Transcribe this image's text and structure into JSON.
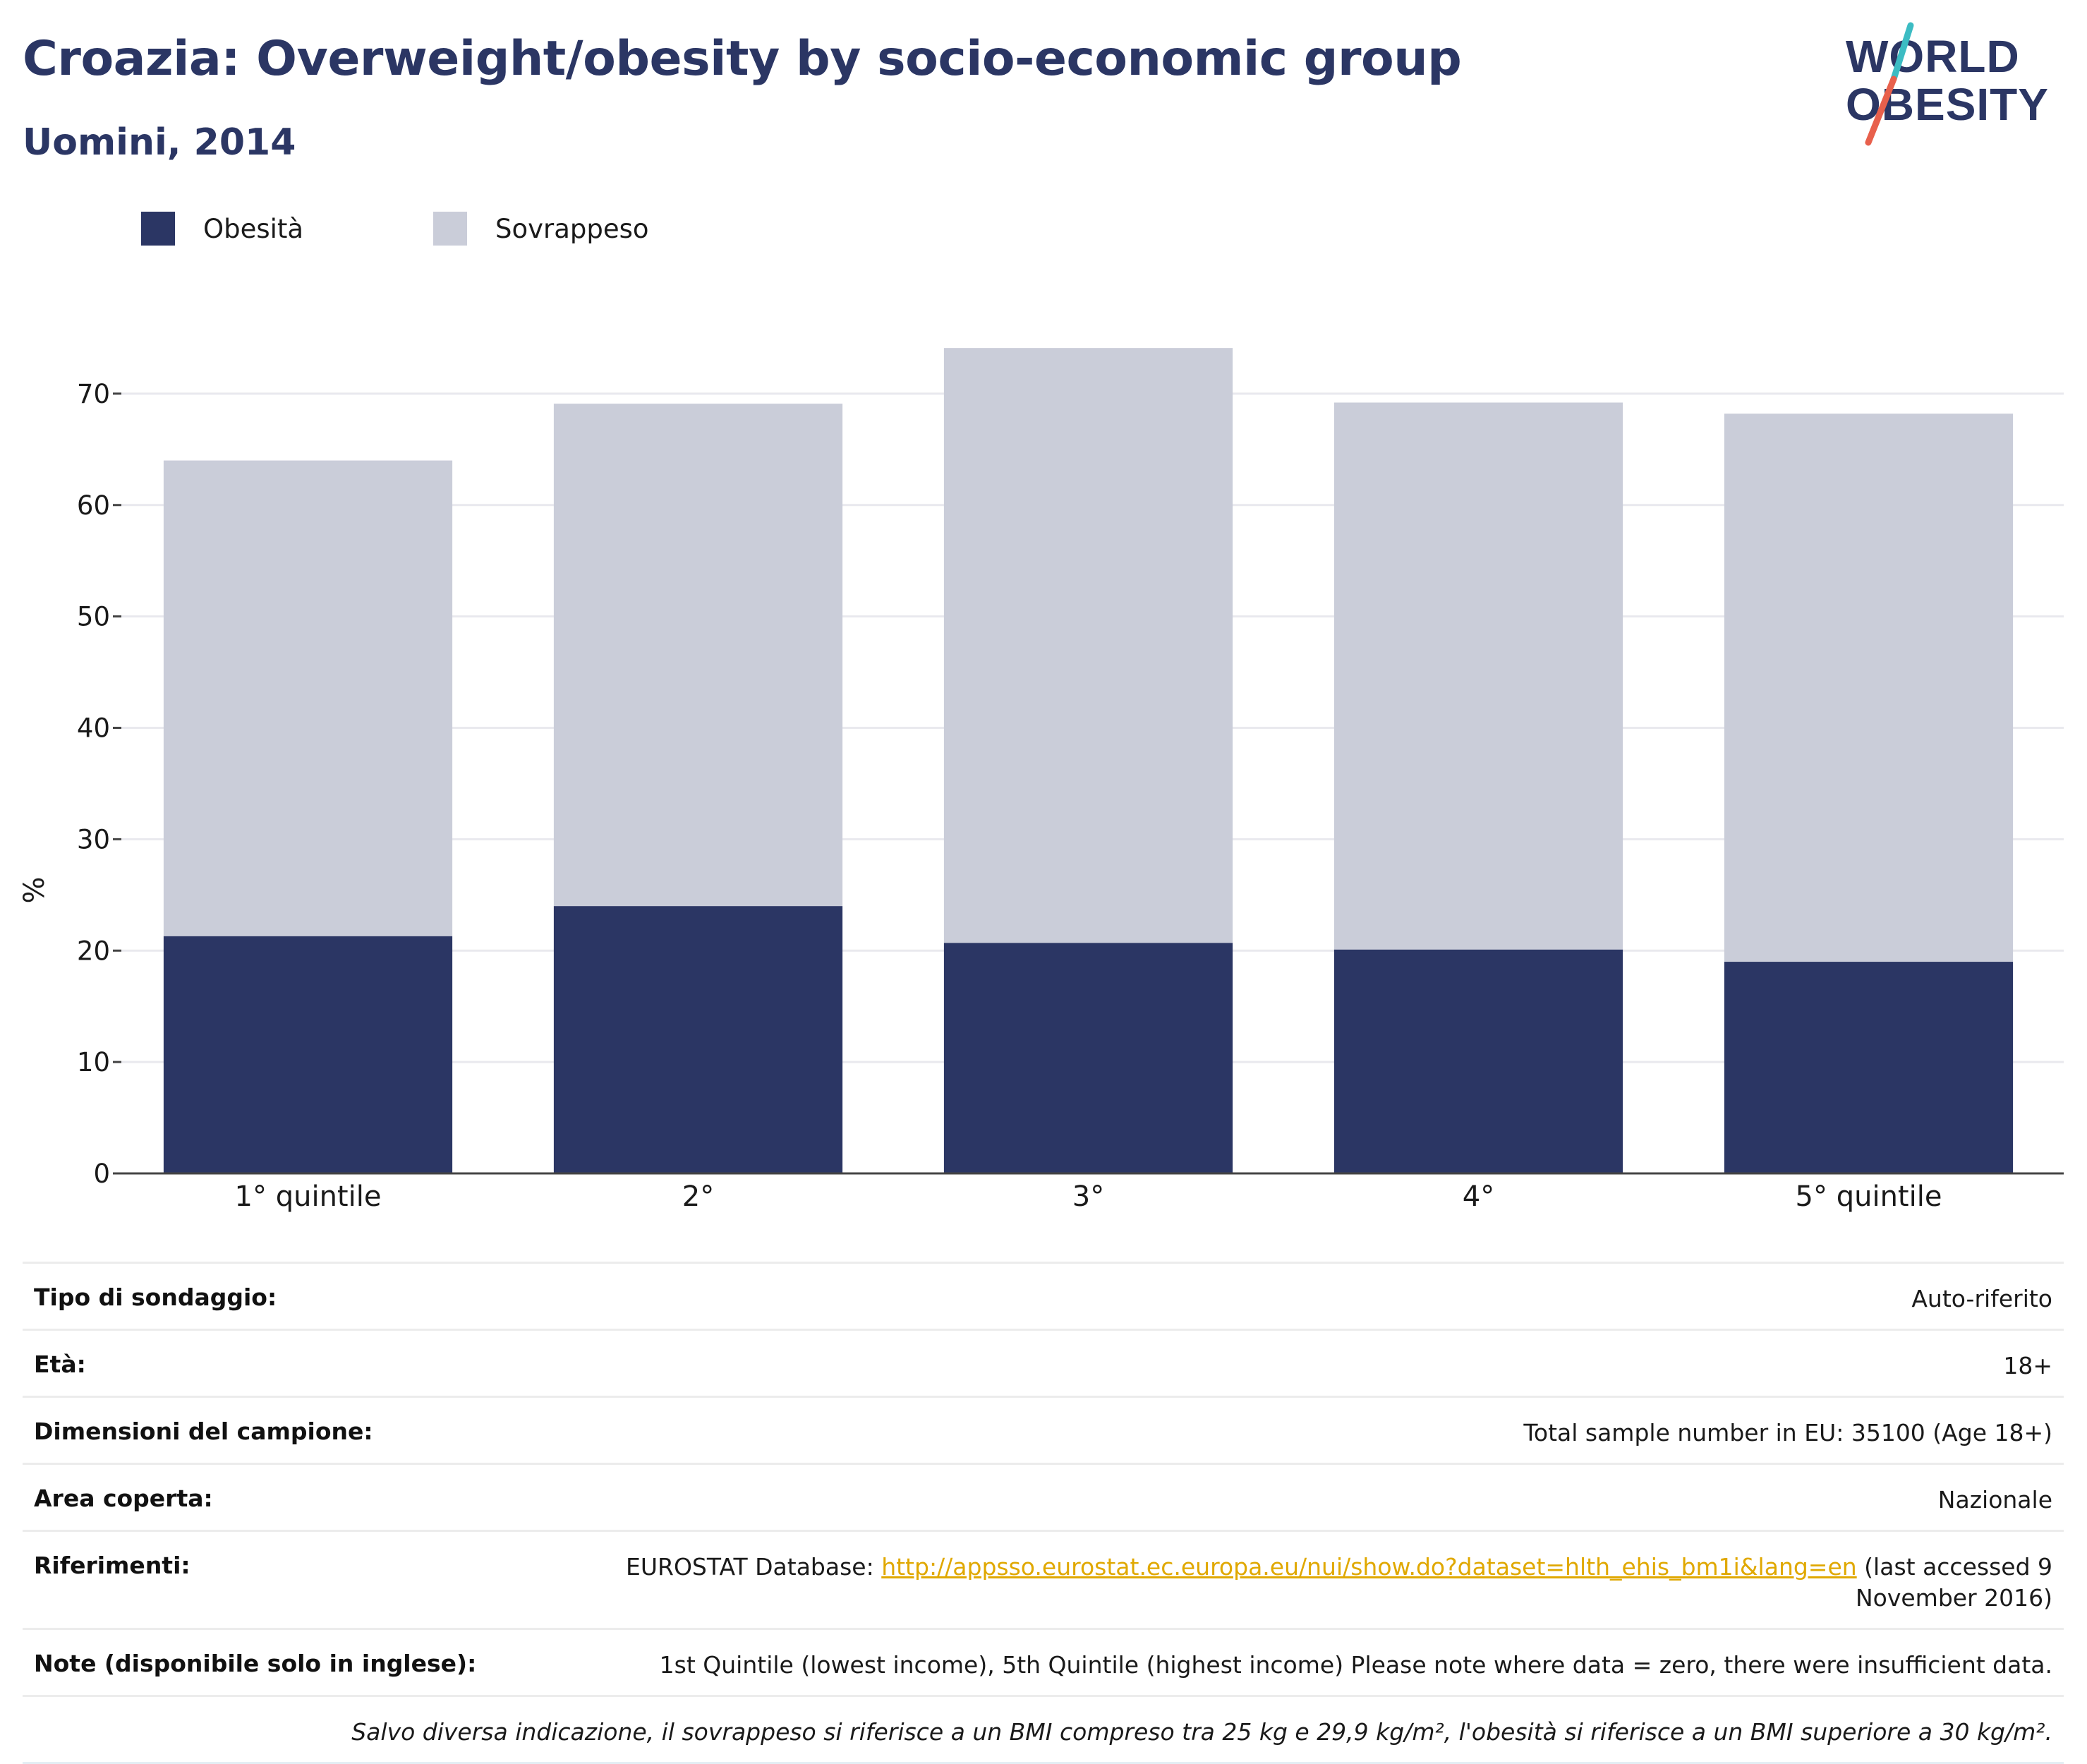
{
  "header": {
    "title": "Croazia: Overweight/obesity by socio-economic group",
    "subtitle": "Uomini, 2014"
  },
  "logo": {
    "line1": "WORLD",
    "line2": "OBESITY",
    "colors": {
      "text": "#2b3664",
      "slash_top": "#3cbcc3",
      "slash_bottom": "#e8604c"
    }
  },
  "legend": [
    {
      "label": "Obesità",
      "color": "#2b3664"
    },
    {
      "label": "Sovrappeso",
      "color": "#cacdd9"
    }
  ],
  "chart_data": {
    "type": "bar",
    "stacked": true,
    "categories": [
      "1° quintile",
      "2°",
      "3°",
      "4°",
      "5° quintile"
    ],
    "series": [
      {
        "name": "Obesità",
        "color": "#2b3664",
        "values": [
          21.3,
          24.0,
          20.7,
          20.1,
          19.0
        ]
      },
      {
        "name": "Sovrappeso",
        "color": "#cacdd9",
        "values": [
          42.7,
          45.1,
          53.4,
          49.1,
          49.2
        ]
      }
    ],
    "totals": [
      64.0,
      69.1,
      74.1,
      69.2,
      68.2
    ],
    "ylabel": "%",
    "ylim": [
      0,
      80
    ],
    "yticks": [
      0,
      10,
      20,
      30,
      40,
      50,
      60,
      70
    ],
    "grid": true,
    "legend_position": "top-left"
  },
  "info": {
    "rows": [
      {
        "key": "Tipo di sondaggio:",
        "value": "Auto-riferito"
      },
      {
        "key": "Età:",
        "value": "18+"
      },
      {
        "key": "Dimensioni del campione:",
        "value": "Total sample number in EU: 35100 (Age 18+)"
      },
      {
        "key": "Area coperta:",
        "value": "Nazionale"
      }
    ],
    "references": {
      "key": "Riferimenti:",
      "prefix": "EUROSTAT Database: ",
      "link": "http://appsso.eurostat.ec.europa.eu/nui/show.do?dataset=hlth_ehis_bm1i&lang=en",
      "suffix": " (last accessed 9 November 2016)"
    },
    "notes": {
      "key": "Note (disponibile solo in inglese):",
      "value": "1st Quintile (lowest income), 5th Quintile (highest income) Please note where data = zero, there were insufficient data."
    },
    "footnote": "Salvo diversa indicazione, il sovrappeso si riferisce a un BMI compreso tra 25 kg e 29,9 kg/m², l'obesità si riferisce a un BMI superiore a 30 kg/m²."
  }
}
